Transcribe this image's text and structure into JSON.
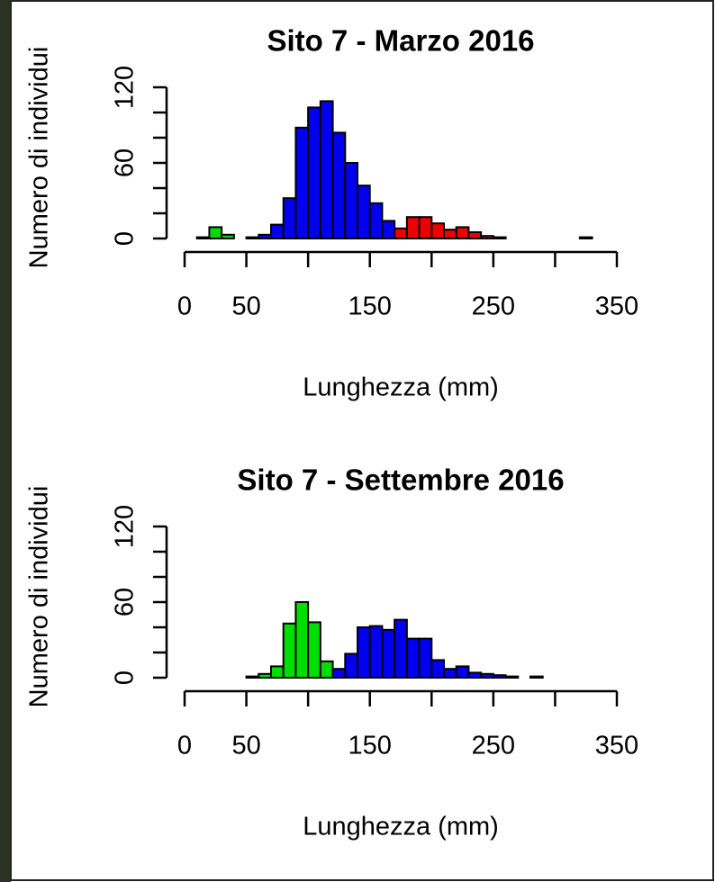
{
  "chart_data": [
    {
      "type": "histogram",
      "title": "Sito 7 - Marzo 2016",
      "xlabel": "Lunghezza (mm)",
      "ylabel": "Numero di individui",
      "bins": [
        10,
        20,
        30,
        40,
        50,
        60,
        70,
        80,
        90,
        100,
        110,
        120,
        130,
        140,
        150,
        160,
        170,
        180,
        190,
        200,
        210,
        220,
        230,
        240,
        250,
        260,
        270,
        280,
        290,
        300,
        310,
        320,
        330,
        340,
        350,
        360
      ],
      "values": [
        1,
        9,
        3,
        0,
        1,
        3,
        11,
        32,
        88,
        104,
        109,
        84,
        60,
        42,
        28,
        14,
        8,
        17,
        17,
        12,
        7,
        9,
        5,
        2,
        1,
        0,
        0,
        0,
        0,
        0,
        0,
        1,
        0,
        0,
        0
      ],
      "colors": [
        "#00dd00",
        "#00dd00",
        "#00dd00",
        "#00dd00",
        "#0000ee",
        "#0000ee",
        "#0000ee",
        "#0000ee",
        "#0000ee",
        "#0000ee",
        "#0000ee",
        "#0000ee",
        "#0000ee",
        "#0000ee",
        "#0000ee",
        "#0000ee",
        "#ee0000",
        "#ee0000",
        "#ee0000",
        "#ee0000",
        "#ee0000",
        "#ee0000",
        "#ee0000",
        "#ee0000",
        "#ee0000",
        "#ee0000",
        "#ee0000",
        "#ee0000",
        "#ee0000",
        "#ee0000",
        "#ee0000",
        "#ee0000",
        "#ee0000",
        "#ee0000",
        "#ee0000"
      ],
      "xlim": [
        0,
        350
      ],
      "xticks": [
        0,
        50,
        150,
        250,
        350
      ],
      "xminor": [
        100,
        200,
        300
      ],
      "ylim": [
        0,
        120
      ],
      "yticks": [
        0,
        60,
        120
      ],
      "yminor": [
        20,
        40,
        80,
        100
      ]
    },
    {
      "type": "histogram",
      "title": "Sito 7 - Settembre 2016",
      "xlabel": "Lunghezza (mm)",
      "ylabel": "Numero di individui",
      "bins": [
        10,
        20,
        30,
        40,
        50,
        60,
        70,
        80,
        90,
        100,
        110,
        120,
        130,
        140,
        150,
        160,
        170,
        180,
        190,
        200,
        210,
        220,
        230,
        240,
        250,
        260,
        270,
        280,
        290,
        300,
        310,
        320,
        330,
        340,
        350,
        360
      ],
      "values": [
        0,
        0,
        0,
        0,
        1,
        3,
        9,
        43,
        60,
        44,
        13,
        7,
        19,
        40,
        41,
        38,
        46,
        31,
        31,
        14,
        7,
        9,
        4,
        3,
        2,
        1,
        0,
        1,
        0,
        0,
        0,
        0,
        0,
        0,
        0
      ],
      "colors": [
        "#00dd00",
        "#00dd00",
        "#00dd00",
        "#00dd00",
        "#00dd00",
        "#00dd00",
        "#00dd00",
        "#00dd00",
        "#00dd00",
        "#00dd00",
        "#00dd00",
        "#0000ee",
        "#0000ee",
        "#0000ee",
        "#0000ee",
        "#0000ee",
        "#0000ee",
        "#0000ee",
        "#0000ee",
        "#0000ee",
        "#0000ee",
        "#0000ee",
        "#0000ee",
        "#0000ee",
        "#0000ee",
        "#0000ee",
        "#0000ee",
        "#0000ee",
        "#0000ee",
        "#0000ee",
        "#0000ee",
        "#0000ee",
        "#0000ee",
        "#0000ee",
        "#0000ee"
      ],
      "xlim": [
        0,
        350
      ],
      "xticks": [
        0,
        50,
        150,
        250,
        350
      ],
      "xminor": [
        100,
        200,
        300
      ],
      "ylim": [
        0,
        120
      ],
      "yticks": [
        0,
        60,
        120
      ],
      "yminor": [
        20,
        40,
        80,
        100
      ]
    }
  ]
}
